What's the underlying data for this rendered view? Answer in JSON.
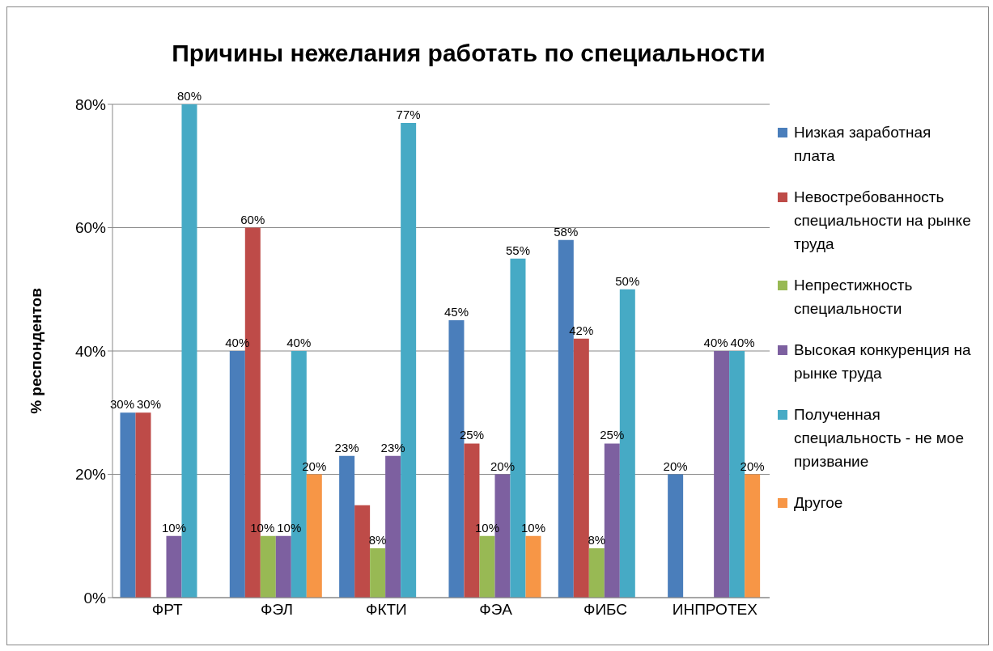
{
  "chart_data": {
    "type": "bar",
    "title": "Причины нежелания работать по специальности",
    "ylabel": "% респондентов",
    "categories": [
      "ФРТ",
      "ФЭЛ",
      "ФКТИ",
      "ФЭА",
      "ФИБС",
      "ИНПРОТЕХ"
    ],
    "series": [
      {
        "name": "Низкая заработная плата",
        "color": "#4a7ebb",
        "values": [
          30,
          40,
          23,
          45,
          58,
          20
        ],
        "value_labels": [
          "30%",
          "40%",
          "23%",
          "45%",
          "58%",
          "20%"
        ]
      },
      {
        "name": "Невостребованность специальности на рынке труда",
        "color": "#be4b48",
        "values": [
          30,
          60,
          15,
          25,
          42,
          null
        ],
        "value_labels": [
          "30%",
          "60%",
          null,
          "25%",
          "42%",
          null
        ]
      },
      {
        "name": "Непрестижность специальности",
        "color": "#98b954",
        "values": [
          null,
          10,
          8,
          10,
          8,
          null
        ],
        "value_labels": [
          null,
          "10%",
          "8%",
          "10%",
          "8%",
          null
        ]
      },
      {
        "name": "Высокая конкуренция на рынке труда",
        "color": "#7d60a0",
        "values": [
          10,
          10,
          23,
          20,
          25,
          40
        ],
        "value_labels": [
          "10%",
          "10%",
          "23%",
          "20%",
          "25%",
          "40%"
        ]
      },
      {
        "name": "Полученная специальность - не мое призвание",
        "color": "#46aac5",
        "values": [
          80,
          40,
          77,
          55,
          50,
          40
        ],
        "value_labels": [
          "80%",
          "40%",
          "77%",
          "55%",
          "50%",
          "40%"
        ]
      },
      {
        "name": "Другое",
        "color": "#f79646",
        "values": [
          null,
          20,
          null,
          10,
          null,
          20
        ],
        "value_labels": [
          null,
          "20%",
          null,
          "10%",
          null,
          "20%"
        ]
      }
    ],
    "ylim": [
      0,
      80
    ],
    "yticks": [
      {
        "value": 0,
        "label": "0%"
      },
      {
        "value": 20,
        "label": "20%"
      },
      {
        "value": 40,
        "label": "40%"
      },
      {
        "value": 60,
        "label": "60%"
      },
      {
        "value": 80,
        "label": "80%"
      }
    ],
    "grid": "y",
    "legend": "right"
  }
}
